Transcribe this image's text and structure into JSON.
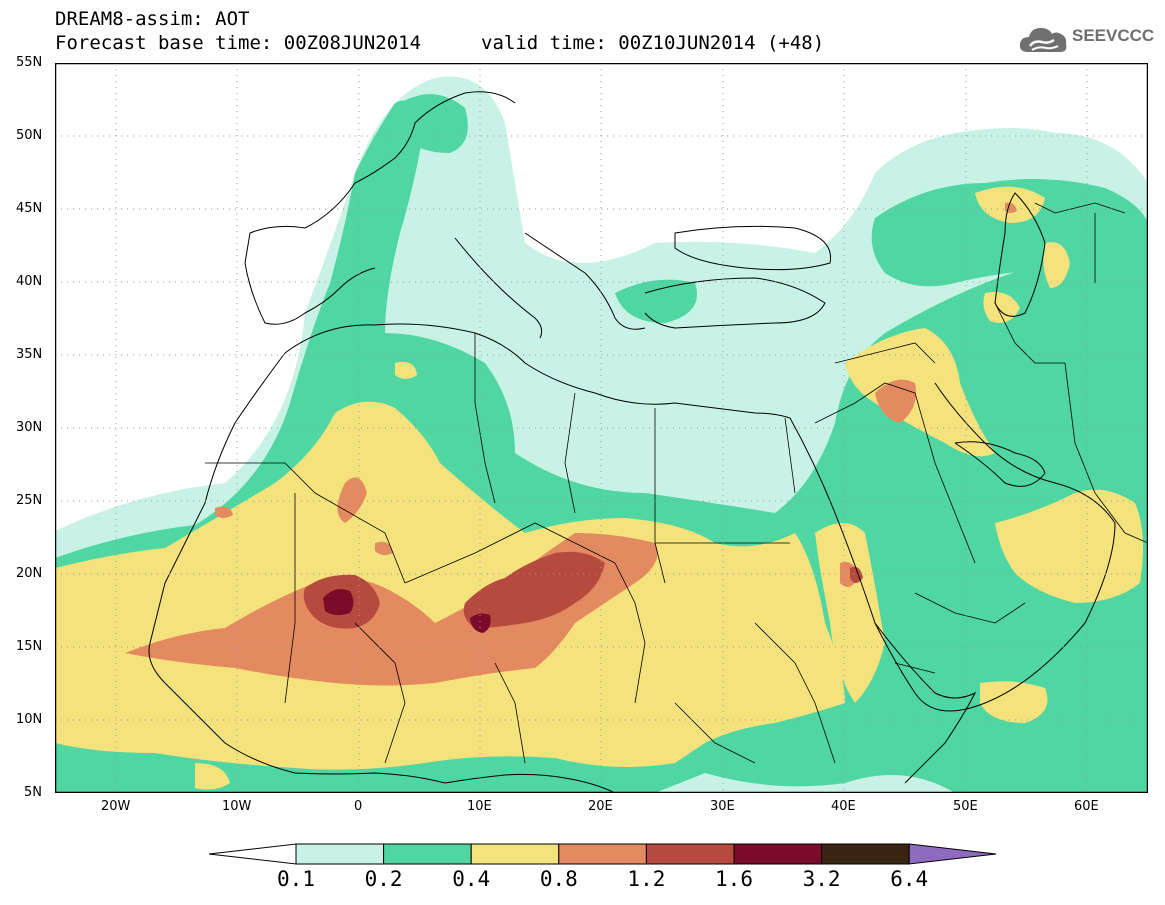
{
  "title": {
    "line1": "DREAM8-assim: AOT",
    "base_time": "Forecast base time: 00Z08JUN2014",
    "valid_time": "valid time: 00Z10JUN2014 (+48)"
  },
  "logo": {
    "text": "SEEVCCC",
    "icon": "cloud-icon"
  },
  "map": {
    "projection": "lat-lon",
    "lon_range": [
      -25,
      65
    ],
    "lat_range": [
      5,
      55
    ],
    "lat_labels": [
      "55N",
      "50N",
      "45N",
      "40N",
      "35N",
      "30N",
      "25N",
      "20N",
      "15N",
      "10N",
      "5N"
    ],
    "lon_labels": [
      "20W",
      "10W",
      "0",
      "10E",
      "20E",
      "30E",
      "40E",
      "50E",
      "60E"
    ],
    "grid": "dotted"
  },
  "legend": {
    "labels": [
      "0.1",
      "0.2",
      "0.4",
      "0.8",
      "1.2",
      "1.6",
      "3.2",
      "6.4"
    ],
    "colors": [
      "#c8f2e6",
      "#4fd6a3",
      "#f4e27c",
      "#e48a60",
      "#b74a3e",
      "#7a0c2a",
      "#3a2412",
      "#8f6bbf"
    ],
    "under_color": "#ffffff",
    "over_color": "#8f6bbf"
  }
}
